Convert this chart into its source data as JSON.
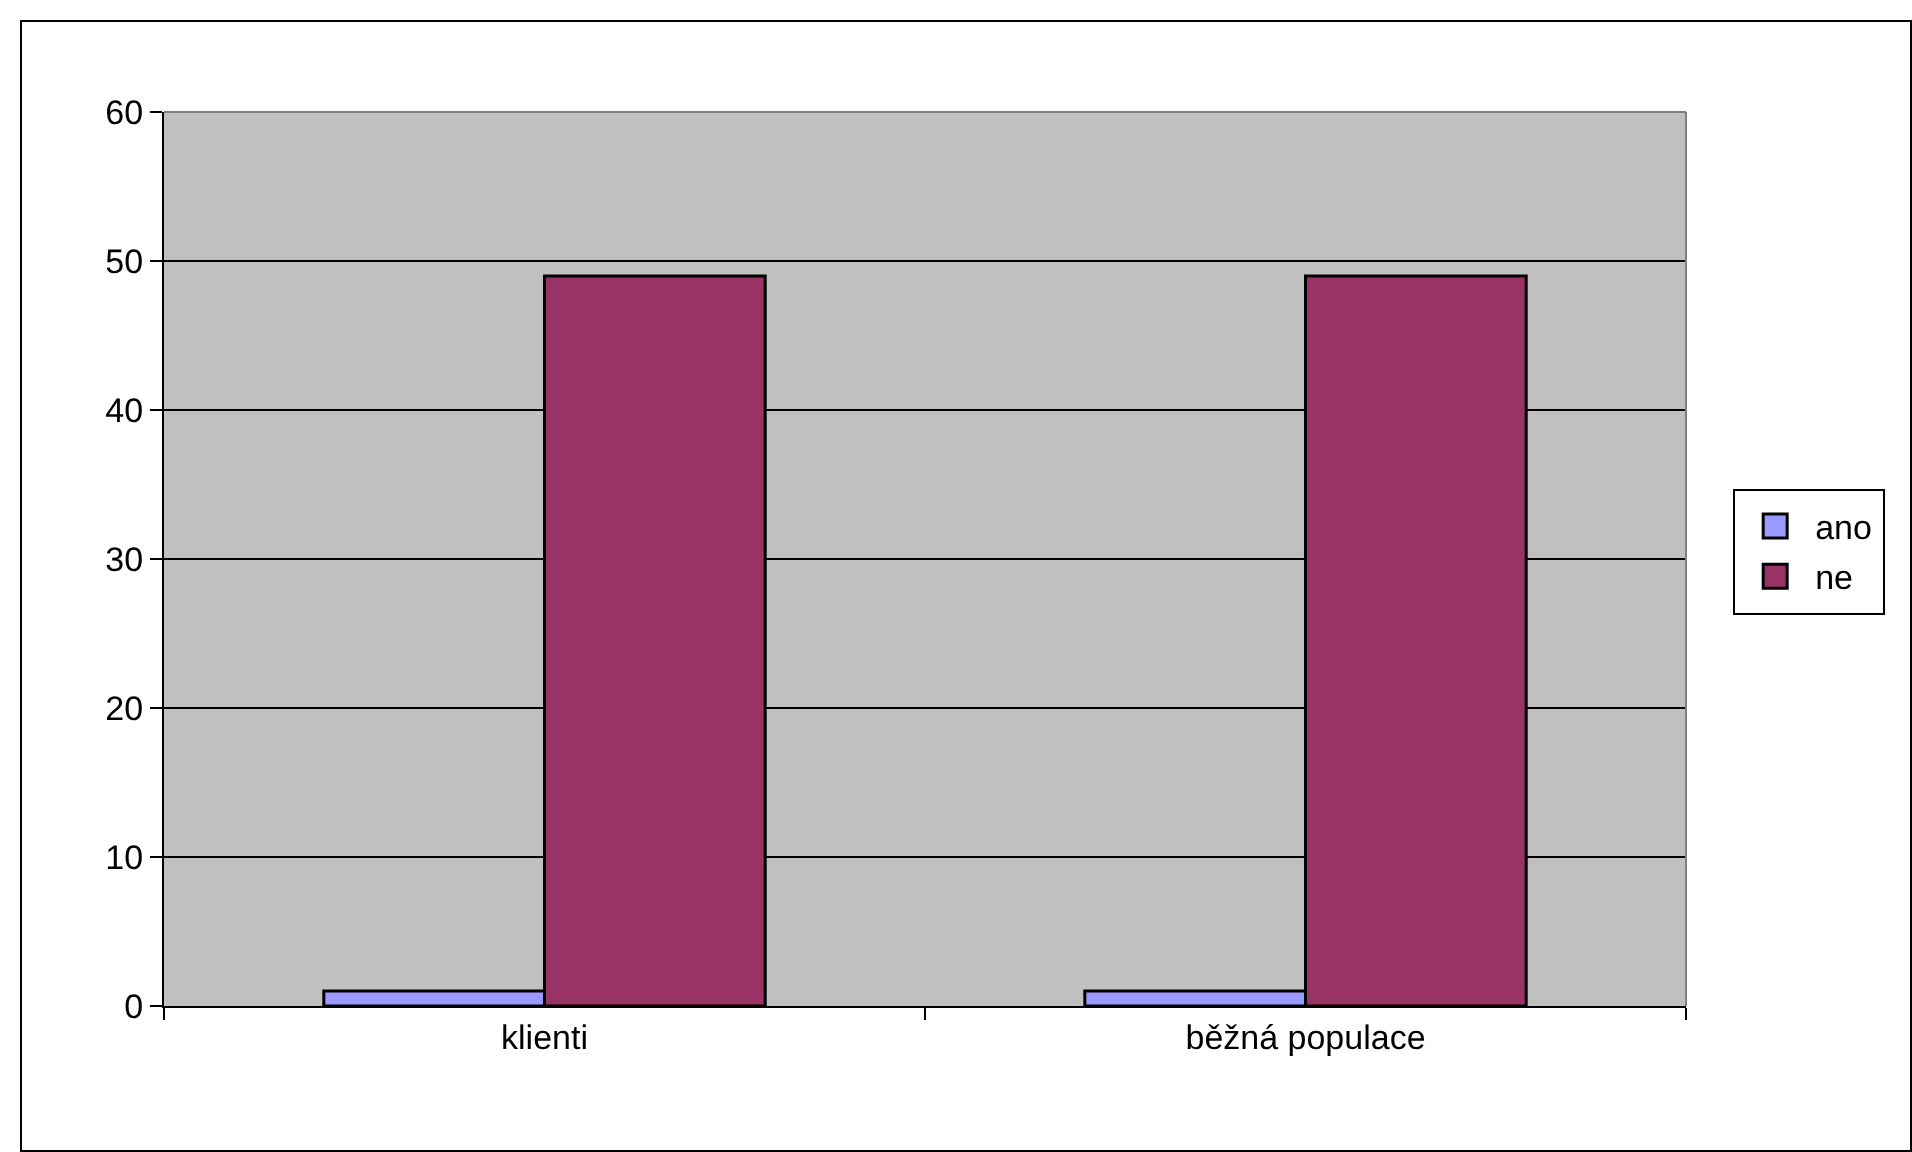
{
  "chart_data": {
    "type": "bar",
    "categories": [
      "klienti",
      "běžná populace"
    ],
    "series": [
      {
        "name": "ano",
        "color": "#9999ff",
        "values": [
          1,
          1
        ]
      },
      {
        "name": "ne",
        "color": "#993366",
        "values": [
          49,
          49
        ]
      }
    ],
    "ylim": [
      0,
      60
    ],
    "yticks": [
      0,
      10,
      20,
      30,
      40,
      50,
      60
    ],
    "grid": "y",
    "legend": "right"
  }
}
